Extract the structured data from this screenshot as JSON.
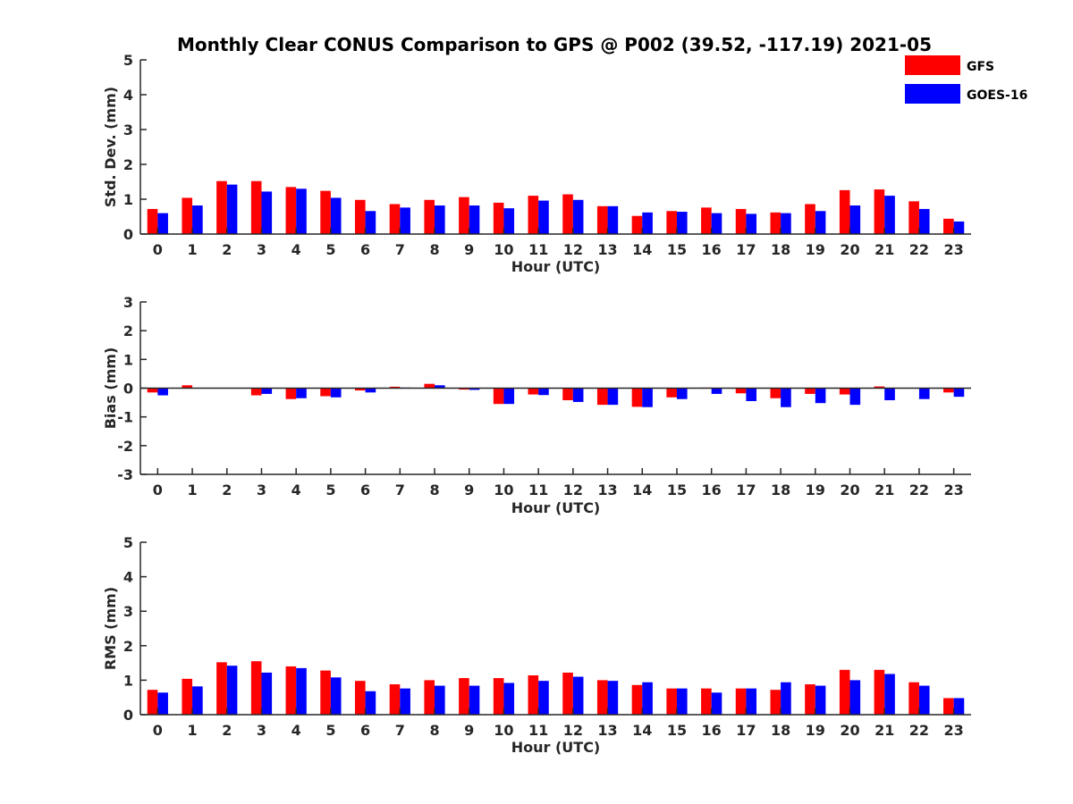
{
  "chart_data": [
    {
      "type": "bar",
      "title": "Monthly Clear CONUS Comparison to GPS @ P002 (39.52, -117.19) 2021-05",
      "xlabel": "Hour (UTC)",
      "ylabel": "Std. Dev. (mm)",
      "ylim": [
        0,
        5
      ],
      "yticks": [
        0,
        1,
        2,
        3,
        4,
        5
      ],
      "categories": [
        "0",
        "1",
        "2",
        "3",
        "4",
        "5",
        "6",
        "7",
        "8",
        "9",
        "10",
        "11",
        "12",
        "13",
        "14",
        "15",
        "16",
        "17",
        "18",
        "19",
        "20",
        "21",
        "22",
        "23"
      ],
      "series": [
        {
          "name": "GFS",
          "color": "#ff0000",
          "values": [
            0.72,
            1.04,
            1.52,
            1.52,
            1.35,
            1.24,
            0.98,
            0.86,
            0.98,
            1.06,
            0.9,
            1.1,
            1.14,
            0.8,
            0.52,
            0.66,
            0.76,
            0.72,
            0.62,
            0.86,
            1.26,
            1.28,
            0.94,
            0.44
          ]
        },
        {
          "name": "GOES-16",
          "color": "#0000ff",
          "values": [
            0.6,
            0.82,
            1.42,
            1.22,
            1.3,
            1.04,
            0.66,
            0.76,
            0.82,
            0.82,
            0.74,
            0.96,
            0.98,
            0.8,
            0.62,
            0.64,
            0.6,
            0.58,
            0.6,
            0.66,
            0.82,
            1.1,
            0.72,
            0.36
          ]
        }
      ]
    },
    {
      "type": "bar",
      "xlabel": "Hour (UTC)",
      "ylabel": "Bias (mm)",
      "ylim": [
        -3,
        3
      ],
      "yticks": [
        -3,
        -2,
        -1,
        0,
        1,
        2,
        3
      ],
      "categories": [
        "0",
        "1",
        "2",
        "3",
        "4",
        "5",
        "6",
        "7",
        "8",
        "9",
        "10",
        "11",
        "12",
        "13",
        "14",
        "15",
        "16",
        "17",
        "18",
        "19",
        "20",
        "21",
        "22",
        "23"
      ],
      "series": [
        {
          "name": "GFS",
          "color": "#ff0000",
          "values": [
            -0.15,
            0.1,
            0.0,
            -0.25,
            -0.38,
            -0.28,
            -0.08,
            0.05,
            0.15,
            -0.05,
            -0.55,
            -0.22,
            -0.42,
            -0.58,
            -0.65,
            -0.32,
            0.02,
            -0.18,
            -0.35,
            -0.2,
            -0.22,
            0.06,
            0.0,
            -0.15
          ]
        },
        {
          "name": "GOES-16",
          "color": "#0000ff",
          "values": [
            -0.25,
            0.0,
            0.0,
            -0.2,
            -0.35,
            -0.32,
            -0.15,
            0.02,
            0.1,
            -0.06,
            -0.55,
            -0.24,
            -0.48,
            -0.58,
            -0.66,
            -0.38,
            -0.2,
            -0.45,
            -0.66,
            -0.52,
            -0.58,
            -0.42,
            -0.38,
            -0.3
          ]
        }
      ]
    },
    {
      "type": "bar",
      "xlabel": "Hour (UTC)",
      "ylabel": "RMS (mm)",
      "ylim": [
        0,
        5
      ],
      "yticks": [
        0,
        1,
        2,
        3,
        4,
        5
      ],
      "categories": [
        "0",
        "1",
        "2",
        "3",
        "4",
        "5",
        "6",
        "7",
        "8",
        "9",
        "10",
        "11",
        "12",
        "13",
        "14",
        "15",
        "16",
        "17",
        "18",
        "19",
        "20",
        "21",
        "22",
        "23"
      ],
      "series": [
        {
          "name": "GFS",
          "color": "#ff0000",
          "values": [
            0.72,
            1.04,
            1.52,
            1.55,
            1.4,
            1.28,
            0.98,
            0.88,
            1.0,
            1.06,
            1.06,
            1.14,
            1.22,
            1.0,
            0.86,
            0.76,
            0.76,
            0.76,
            0.72,
            0.88,
            1.3,
            1.3,
            0.94,
            0.48
          ]
        },
        {
          "name": "GOES-16",
          "color": "#0000ff",
          "values": [
            0.64,
            0.82,
            1.42,
            1.22,
            1.35,
            1.08,
            0.68,
            0.76,
            0.84,
            0.84,
            0.92,
            0.98,
            1.1,
            0.98,
            0.94,
            0.76,
            0.64,
            0.76,
            0.94,
            0.84,
            1.0,
            1.18,
            0.84,
            0.48
          ]
        }
      ]
    }
  ],
  "legend": {
    "position": "top-right",
    "items": [
      {
        "label": "GFS",
        "color": "#ff0000"
      },
      {
        "label": "GOES-16",
        "color": "#0000ff"
      }
    ]
  }
}
